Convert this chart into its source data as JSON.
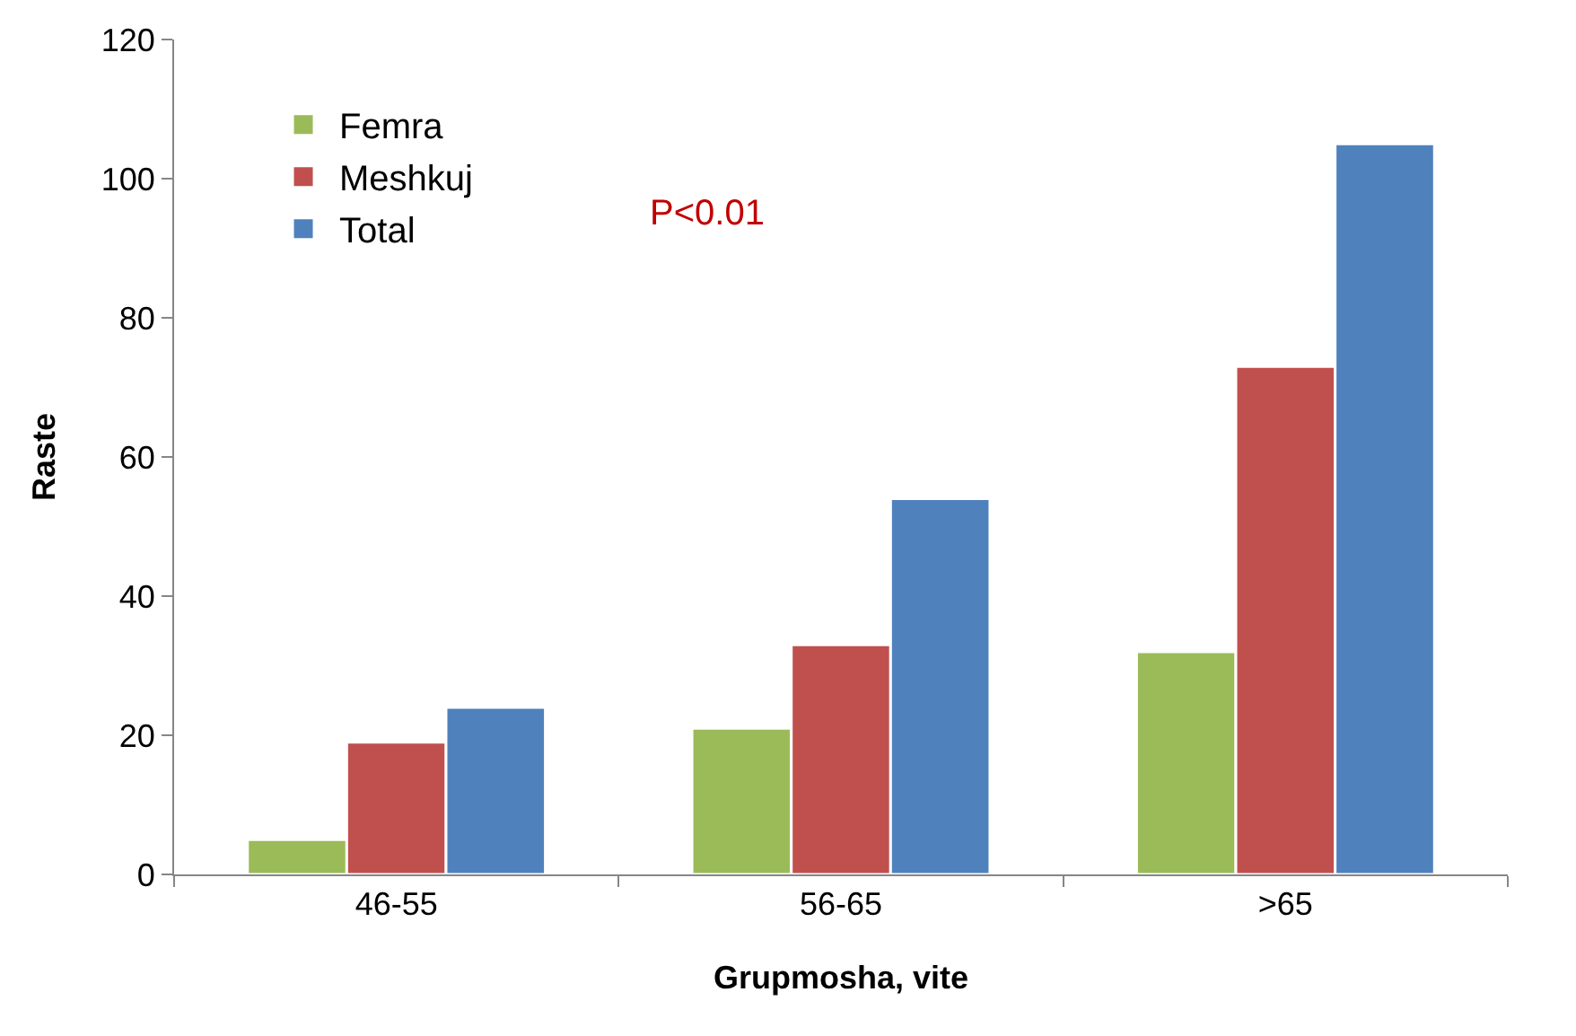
{
  "chart_data": {
    "type": "bar",
    "xlabel": "Grupmosha, vite",
    "ylabel": "Raste",
    "categories": [
      "46-55",
      "56-65",
      ">65"
    ],
    "series": [
      {
        "name": "Femra",
        "color": "#9bbb59",
        "values": [
          5,
          21,
          32
        ]
      },
      {
        "name": "Meshkuj",
        "color": "#c0504d",
        "values": [
          19,
          33,
          73
        ]
      },
      {
        "name": "Total",
        "color": "#4f81bd",
        "values": [
          24,
          54,
          105
        ]
      }
    ],
    "ylim": [
      0,
      120
    ],
    "yticks": [
      0,
      20,
      40,
      60,
      80,
      100,
      120
    ],
    "grid": false,
    "legend": "top left",
    "annotations": [
      "P<0.01"
    ]
  }
}
